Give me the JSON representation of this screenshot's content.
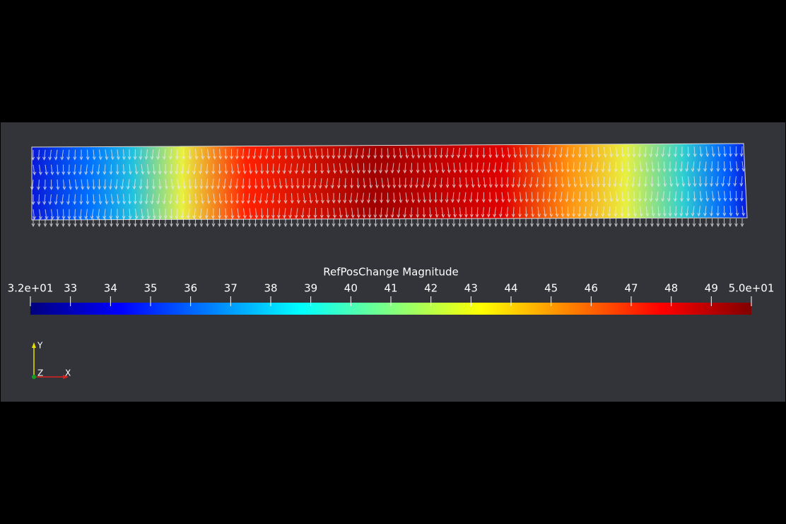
{
  "colorbar": {
    "title": "RefPosChange Magnitude",
    "range": [
      32,
      50
    ],
    "ticks": [
      {
        "value": 32,
        "label": "3.2e+01"
      },
      33,
      34,
      35,
      36,
      37,
      38,
      39,
      40,
      41,
      42,
      43,
      44,
      45,
      46,
      47,
      48,
      49,
      {
        "value": 50,
        "label": "5.0e+01"
      }
    ]
  },
  "orientation_axes": {
    "y": "Y",
    "z": "Z",
    "x": "X"
  }
}
